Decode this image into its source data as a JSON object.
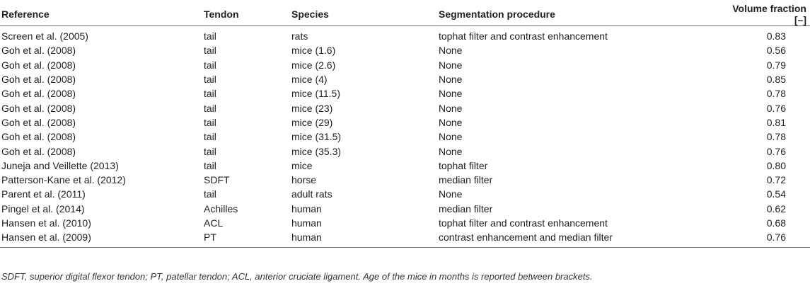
{
  "table": {
    "headers": {
      "reference": "Reference",
      "tendon": "Tendon",
      "species": "Species",
      "segmentation": "Segmentation procedure",
      "volume_fraction": "Volume fraction [–]"
    },
    "rows": [
      {
        "reference": "Screen et al. (2005)",
        "tendon": "tail",
        "species": "rats",
        "segmentation": "tophat filter and contrast enhancement",
        "volume_fraction": "0.83"
      },
      {
        "reference": "Goh et al. (2008)",
        "tendon": "tail",
        "species": "mice (1.6)",
        "segmentation": "None",
        "volume_fraction": "0.56"
      },
      {
        "reference": "Goh et al. (2008)",
        "tendon": "tail",
        "species": "mice (2.6)",
        "segmentation": "None",
        "volume_fraction": "0.79"
      },
      {
        "reference": "Goh et al. (2008)",
        "tendon": "tail",
        "species": "mice (4)",
        "segmentation": "None",
        "volume_fraction": "0.85"
      },
      {
        "reference": "Goh et al. (2008)",
        "tendon": "tail",
        "species": "mice (11.5)",
        "segmentation": "None",
        "volume_fraction": "0.78"
      },
      {
        "reference": "Goh et al. (2008)",
        "tendon": "tail",
        "species": "mice (23)",
        "segmentation": "None",
        "volume_fraction": "0.76"
      },
      {
        "reference": "Goh et al. (2008)",
        "tendon": "tail",
        "species": "mice (29)",
        "segmentation": "None",
        "volume_fraction": "0.81"
      },
      {
        "reference": "Goh et al. (2008)",
        "tendon": "tail",
        "species": "mice (31.5)",
        "segmentation": "None",
        "volume_fraction": "0.78"
      },
      {
        "reference": "Goh et al. (2008)",
        "tendon": "tail",
        "species": "mice (35.3)",
        "segmentation": "None",
        "volume_fraction": "0.76"
      },
      {
        "reference": "Juneja and Veillette (2013)",
        "tendon": "tail",
        "species": "mice",
        "segmentation": "tophat filter",
        "volume_fraction": "0.80"
      },
      {
        "reference": "Patterson-Kane et al. (2012)",
        "tendon": "SDFT",
        "species": "horse",
        "segmentation": "median filter",
        "volume_fraction": "0.72"
      },
      {
        "reference": "Parent et al. (2011)",
        "tendon": "tail",
        "species": "adult rats",
        "segmentation": "None",
        "volume_fraction": "0.54"
      },
      {
        "reference": "Pingel et al. (2014)",
        "tendon": "Achilles",
        "species": "human",
        "segmentation": "median filter",
        "volume_fraction": "0.62"
      },
      {
        "reference": "Hansen et al. (2010)",
        "tendon": "ACL",
        "species": "human",
        "segmentation": "tophat filter and contrast enhancement",
        "volume_fraction": "0.68"
      },
      {
        "reference": "Hansen et al. (2009)",
        "tendon": "PT",
        "species": "human",
        "segmentation": "contrast enhancement and median filter",
        "volume_fraction": "0.76"
      }
    ]
  },
  "footnote": "SDFT, superior digital flexor tendon; PT, patellar tendon; ACL, anterior cruciate ligament. Age of the mice in months is reported between brackets."
}
